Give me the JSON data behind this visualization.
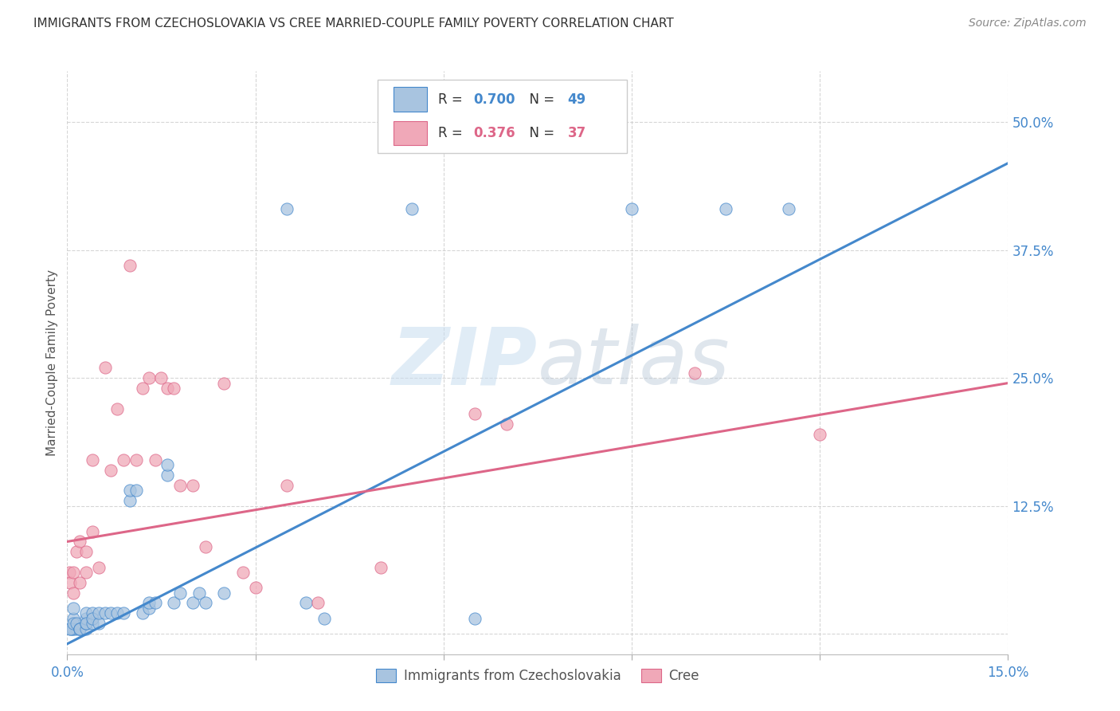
{
  "title": "IMMIGRANTS FROM CZECHOSLOVAKIA VS CREE MARRIED-COUPLE FAMILY POVERTY CORRELATION CHART",
  "source": "Source: ZipAtlas.com",
  "ylabel": "Married-Couple Family Poverty",
  "xlim": [
    0.0,
    0.15
  ],
  "ylim": [
    -0.02,
    0.55
  ],
  "blue_R": "0.700",
  "blue_N": "49",
  "pink_R": "0.376",
  "pink_N": "37",
  "blue_color": "#a8c4e0",
  "blue_line_color": "#4488cc",
  "pink_color": "#f0a8b8",
  "pink_line_color": "#dd6688",
  "legend_label_blue": "Immigrants from Czechoslovakia",
  "legend_label_pink": "Cree",
  "watermark_zip": "ZIP",
  "watermark_atlas": "atlas",
  "background_color": "#ffffff",
  "title_fontsize": 11,
  "blue_points_x": [
    0.0005,
    0.001,
    0.001,
    0.0015,
    0.001,
    0.0008,
    0.0005,
    0.001,
    0.002,
    0.0015,
    0.002,
    0.002,
    0.003,
    0.003,
    0.003,
    0.003,
    0.003,
    0.004,
    0.004,
    0.004,
    0.005,
    0.005,
    0.006,
    0.007,
    0.008,
    0.009,
    0.01,
    0.01,
    0.011,
    0.012,
    0.013,
    0.013,
    0.014,
    0.016,
    0.016,
    0.017,
    0.018,
    0.02,
    0.021,
    0.022,
    0.025,
    0.035,
    0.038,
    0.041,
    0.055,
    0.065,
    0.09,
    0.105,
    0.115
  ],
  "blue_points_y": [
    0.005,
    0.005,
    0.015,
    0.005,
    0.025,
    0.005,
    0.005,
    0.01,
    0.005,
    0.01,
    0.005,
    0.005,
    0.005,
    0.01,
    0.015,
    0.02,
    0.01,
    0.01,
    0.02,
    0.015,
    0.01,
    0.02,
    0.02,
    0.02,
    0.02,
    0.02,
    0.13,
    0.14,
    0.14,
    0.02,
    0.025,
    0.03,
    0.03,
    0.155,
    0.165,
    0.03,
    0.04,
    0.03,
    0.04,
    0.03,
    0.04,
    0.415,
    0.03,
    0.015,
    0.415,
    0.015,
    0.415,
    0.415,
    0.415
  ],
  "pink_points_x": [
    0.0003,
    0.0005,
    0.001,
    0.001,
    0.0015,
    0.002,
    0.002,
    0.003,
    0.003,
    0.004,
    0.004,
    0.005,
    0.006,
    0.007,
    0.008,
    0.009,
    0.01,
    0.011,
    0.012,
    0.013,
    0.014,
    0.015,
    0.016,
    0.017,
    0.018,
    0.02,
    0.022,
    0.025,
    0.028,
    0.03,
    0.035,
    0.04,
    0.05,
    0.065,
    0.07,
    0.1,
    0.12
  ],
  "pink_points_y": [
    0.06,
    0.05,
    0.04,
    0.06,
    0.08,
    0.05,
    0.09,
    0.06,
    0.08,
    0.1,
    0.17,
    0.065,
    0.26,
    0.16,
    0.22,
    0.17,
    0.36,
    0.17,
    0.24,
    0.25,
    0.17,
    0.25,
    0.24,
    0.24,
    0.145,
    0.145,
    0.085,
    0.245,
    0.06,
    0.045,
    0.145,
    0.03,
    0.065,
    0.215,
    0.205,
    0.255,
    0.195
  ],
  "blue_line_x0": 0.0,
  "blue_line_y0": -0.01,
  "blue_line_x1": 0.15,
  "blue_line_y1": 0.46,
  "pink_line_x0": 0.0,
  "pink_line_y0": 0.09,
  "pink_line_x1": 0.15,
  "pink_line_y1": 0.245
}
